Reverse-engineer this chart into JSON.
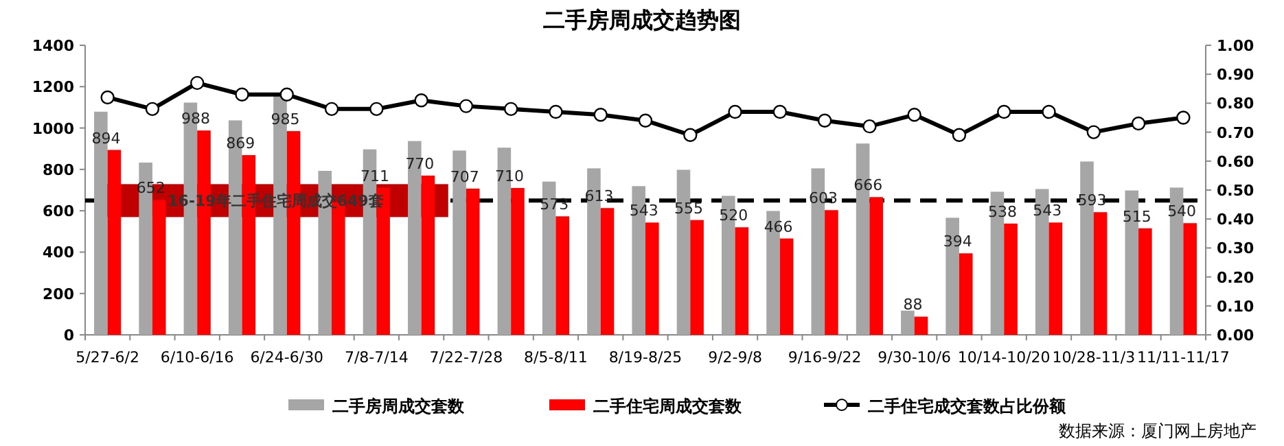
{
  "chart_data": {
    "type": "bar",
    "title": "二手房周成交趋势图",
    "categories": [
      "5/27-6/2",
      null,
      "6/10-6/16",
      null,
      "6/24-6/30",
      null,
      "7/8-7/14",
      null,
      "7/22-7/28",
      null,
      "8/5-8/11",
      null,
      "8/19-8/25",
      null,
      "9/2-9/8",
      null,
      "9/16-9/22",
      null,
      "9/30-10/6",
      null,
      "10/14-10/20",
      null,
      "10/28-11/3",
      null,
      "11/11-11/17"
    ],
    "series": [
      {
        "name": "二手房周成交套数",
        "color": "#a6a6a6",
        "values": [
          1079,
          833,
          1123,
          1037,
          1160,
          793,
          897,
          937,
          891,
          905,
          741,
          805,
          719,
          798,
          672,
          599,
          805,
          925,
          117,
          566,
          692,
          705,
          838,
          698,
          712
        ]
      },
      {
        "name": "二手住宅周成交套数",
        "color": "#ff0000",
        "values": [
          894,
          652,
          988,
          869,
          985,
          640,
          711,
          770,
          707,
          710,
          573,
          613,
          543,
          555,
          520,
          466,
          603,
          666,
          88,
          394,
          538,
          543,
          593,
          515,
          540
        ],
        "value_labels": [
          "894",
          "652",
          "988",
          "869",
          "985",
          null,
          "711",
          "770",
          "707",
          "710",
          "573",
          "613",
          "543",
          "555",
          "520",
          "466",
          "603",
          "666",
          "88",
          "394",
          "538",
          "543",
          "593",
          "515",
          "540"
        ]
      },
      {
        "name": "二手住宅成交套数占比份额",
        "type": "line",
        "axis": "y2",
        "color": "#000000",
        "marker": "circle",
        "values": [
          0.82,
          0.78,
          0.87,
          0.83,
          0.83,
          0.78,
          0.78,
          0.81,
          0.79,
          0.78,
          0.77,
          0.76,
          0.74,
          0.69,
          0.77,
          0.77,
          0.74,
          0.72,
          0.76,
          0.69,
          0.77,
          0.77,
          0.7,
          0.73,
          0.75
        ]
      }
    ],
    "ylim": [
      0,
      1400
    ],
    "yticks": [
      0,
      200,
      400,
      600,
      800,
      1000,
      1200,
      1400
    ],
    "y2lim": [
      0,
      1
    ],
    "y2ticks": [
      {
        "value": 0,
        "label": "0.00"
      },
      {
        "value": 0.1,
        "label": "0.10"
      },
      {
        "value": 0.2,
        "label": "0.20"
      },
      {
        "value": 0.3,
        "label": "0.30"
      },
      {
        "value": 0.4,
        "label": "0.40"
      },
      {
        "value": 0.5,
        "label": "0.50"
      },
      {
        "value": 0.6,
        "label": "0.60"
      },
      {
        "value": 0.7,
        "label": "0.70"
      },
      {
        "value": 0.8,
        "label": "0.80"
      },
      {
        "value": 0.9,
        "label": "0.90"
      },
      {
        "value": 1,
        "label": "1.00"
      }
    ],
    "ref_lines": [
      {
        "axis": "y",
        "value": 649,
        "label": "16-19年二手住宅周成交649套",
        "color": "#000000",
        "line_style": "dashed"
      }
    ],
    "legend": "bottom",
    "grid": false,
    "annotations": [
      "数据来源：厦门网上房地产"
    ]
  }
}
